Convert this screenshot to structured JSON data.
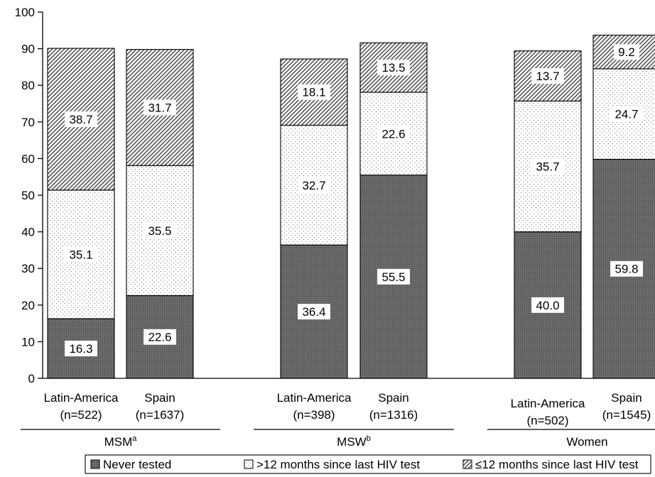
{
  "chart_data": {
    "type": "bar",
    "stacked": true,
    "ylim": [
      0,
      100
    ],
    "yticks": [
      0,
      10,
      20,
      30,
      40,
      50,
      60,
      70,
      80,
      90,
      100
    ],
    "groups": [
      {
        "label": "MSM",
        "superscript": "a",
        "bars": [
          {
            "line1": "Latin-America",
            "line2": "(n=522)",
            "values": [
              16.3,
              35.1,
              38.7
            ],
            "labels": [
              "16.3",
              "35.1",
              "38.7"
            ]
          },
          {
            "line1": "Spain",
            "line2": "(n=1637)",
            "values": [
              22.6,
              35.5,
              31.7
            ],
            "labels": [
              "22.6",
              "35.5",
              "31.7"
            ]
          }
        ]
      },
      {
        "label": "MSW",
        "superscript": "b",
        "bars": [
          {
            "line1": "Latin-America",
            "line2": "(n=398)",
            "values": [
              36.4,
              32.7,
              18.1
            ],
            "labels": [
              "36.4",
              "32.7",
              "18.1"
            ]
          },
          {
            "line1": "Spain",
            "line2": "(n=1316)",
            "values": [
              55.5,
              22.6,
              13.5
            ],
            "labels": [
              "55.5",
              "22.6",
              "13.5"
            ]
          }
        ]
      },
      {
        "label": "Women",
        "superscript": "",
        "bars": [
          {
            "line1": "Latin-America",
            "line2": "(n=502)",
            "values": [
              40.0,
              35.7,
              13.7
            ],
            "labels": [
              "40.0",
              "35.7",
              "13.7"
            ]
          },
          {
            "line1": "Spain",
            "line2": "(n=1545)",
            "values": [
              59.8,
              24.7,
              9.2
            ],
            "labels": [
              "59.8",
              "24.7",
              "9.2"
            ]
          }
        ]
      }
    ],
    "series": [
      {
        "name": "Never tested",
        "pattern": "dark-crosshatch"
      },
      {
        "name": ">12 months since last HIV test",
        "pattern": "dots"
      },
      {
        "name": "≤12 months since last HIV test",
        "pattern": "diagonal"
      }
    ],
    "legend_position": "bottom",
    "grid": false
  }
}
